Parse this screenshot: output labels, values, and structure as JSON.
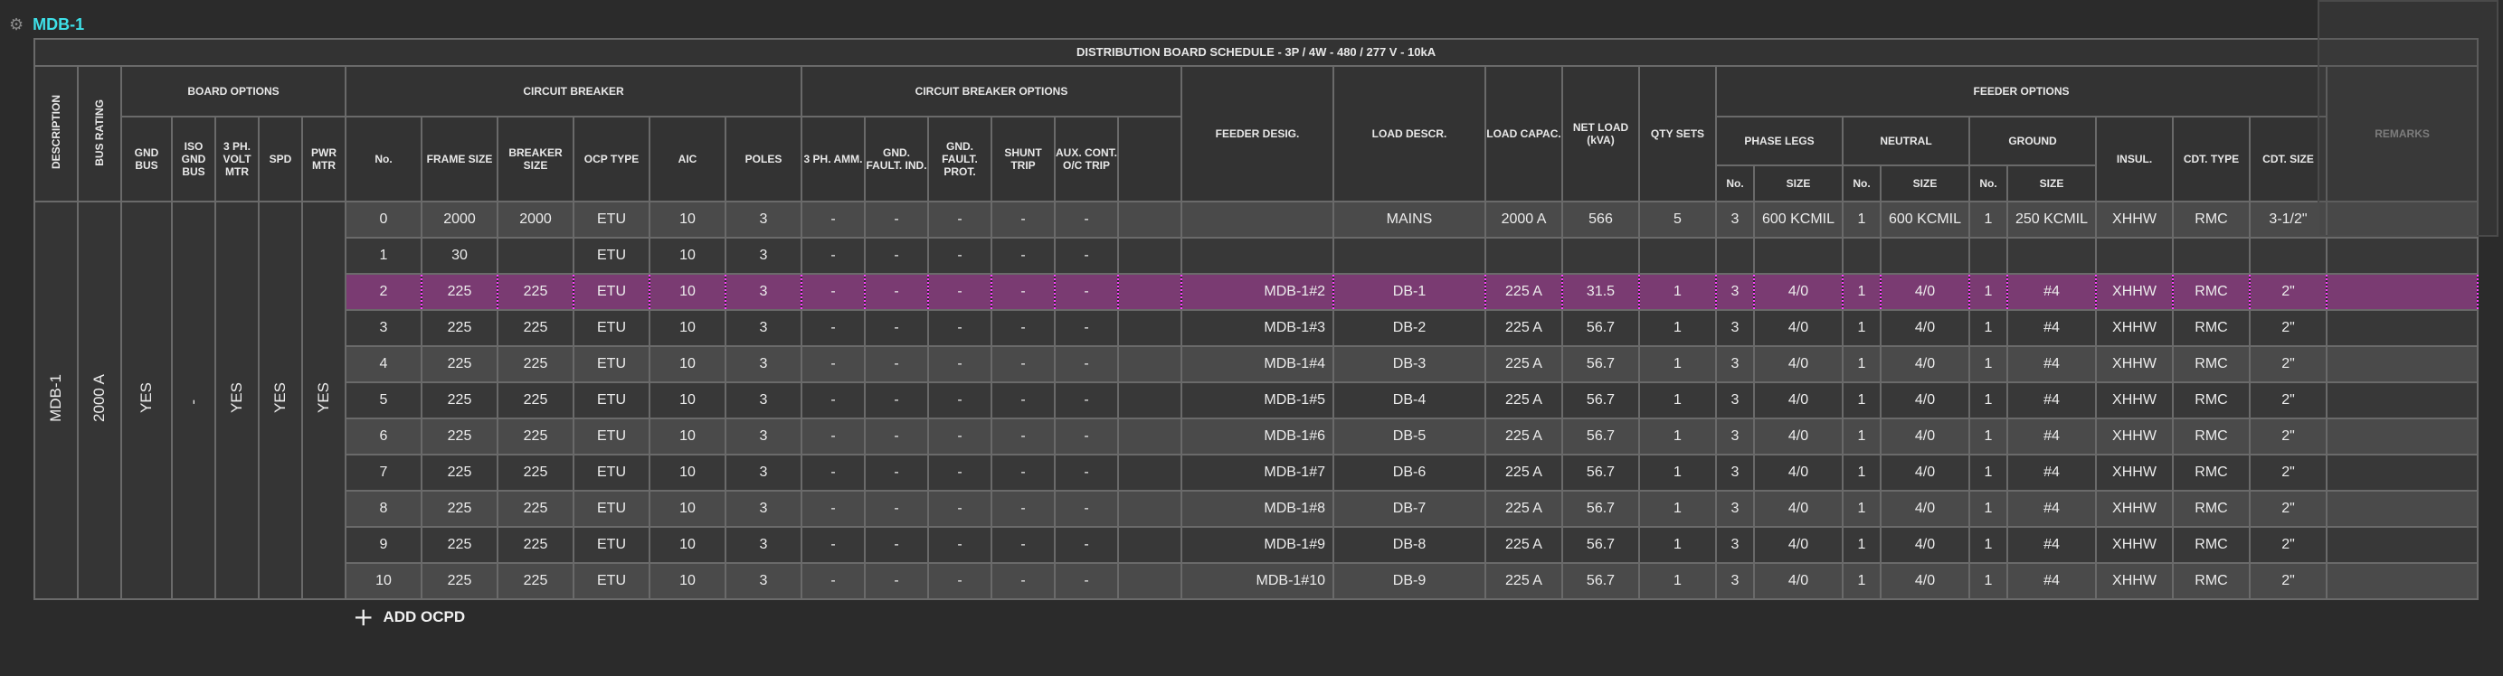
{
  "panel": {
    "title": "MDB-1"
  },
  "schedule_title": "DISTRIBUTION BOARD SCHEDULE - 3P / 4W - 480 / 277 V - 10kA",
  "headers": {
    "description": "DESCRIPTION",
    "bus_rating": "BUS RATING",
    "board_options": "BOARD OPTIONS",
    "gnd_bus": "GND BUS",
    "iso_gnd_bus": "ISO GND BUS",
    "volt_mtr": "3 PH. VOLT MTR",
    "spd": "SPD",
    "pwr_mtr": "PWR MTR",
    "circuit_breaker": "CIRCUIT BREAKER",
    "no": "No.",
    "frame_size": "FRAME SIZE",
    "breaker_size": "BREAKER SIZE",
    "ocp_type": "OCP TYPE",
    "aic": "AIC",
    "poles": "POLES",
    "cb_options": "CIRCUIT BREAKER OPTIONS",
    "amm": "3 PH. AMM.",
    "gnd_fault_ind": "GND. FAULT. IND.",
    "gnd_fault_prot": "GND. FAULT. PROT.",
    "shunt_trip": "SHUNT TRIP",
    "aux_cont": "AUX. CONT. O/C TRIP",
    "feeder_desig": "FEEDER DESIG.",
    "load_descr": "LOAD DESCR.",
    "load_capac": "LOAD CAPAC.",
    "net_load": "NET LOAD (kVA)",
    "qty_sets": "QTY SETS",
    "feeder_options": "FEEDER OPTIONS",
    "phase_legs": "PHASE LEGS",
    "neutral": "NEUTRAL",
    "ground": "GROUND",
    "sub_no": "No.",
    "sub_size": "SIZE",
    "insul": "INSUL.",
    "cdt_type": "CDT. TYPE",
    "cdt_size": "CDT. SIZE",
    "remarks": "REMARKS"
  },
  "board": {
    "description": "MDB-1",
    "bus_rating": "2000 A",
    "gnd_bus": "YES",
    "iso_gnd_bus": "-",
    "volt_mtr": "YES",
    "spd": "YES",
    "pwr_mtr": "YES"
  },
  "rows": [
    {
      "no": "0",
      "frame": "2000",
      "breaker": "2000",
      "ocp": "ETU",
      "aic": "10",
      "poles": "3",
      "amm": "-",
      "gfi": "-",
      "gfp": "-",
      "shunt": "-",
      "aux": "-",
      "desig": "",
      "load": "MAINS",
      "capac": "2000 A",
      "net": "566",
      "qty": "5",
      "ph_no": "3",
      "ph_size": "600 KCMIL",
      "n_no": "1",
      "n_size": "600 KCMIL",
      "g_no": "1",
      "g_size": "250 KCMIL",
      "insul": "XHHW",
      "cdt_type": "RMC",
      "cdt_size": "3-1/2\"",
      "remarks": ""
    },
    {
      "no": "1",
      "frame": "30",
      "breaker": "",
      "ocp": "ETU",
      "aic": "10",
      "poles": "3",
      "amm": "-",
      "gfi": "-",
      "gfp": "-",
      "shunt": "-",
      "aux": "-",
      "desig": "",
      "load": "",
      "capac": "",
      "net": "",
      "qty": "",
      "ph_no": "",
      "ph_size": "",
      "n_no": "",
      "n_size": "",
      "g_no": "",
      "g_size": "",
      "insul": "",
      "cdt_type": "",
      "cdt_size": "",
      "remarks": ""
    },
    {
      "no": "2",
      "frame": "225",
      "breaker": "225",
      "ocp": "ETU",
      "aic": "10",
      "poles": "3",
      "amm": "-",
      "gfi": "-",
      "gfp": "-",
      "shunt": "-",
      "aux": "-",
      "desig": "MDB-1#2",
      "load": "DB-1",
      "capac": "225 A",
      "net": "31.5",
      "qty": "1",
      "ph_no": "3",
      "ph_size": "4/0",
      "n_no": "1",
      "n_size": "4/0",
      "g_no": "1",
      "g_size": "#4",
      "insul": "XHHW",
      "cdt_type": "RMC",
      "cdt_size": "2\"",
      "remarks": ""
    },
    {
      "no": "3",
      "frame": "225",
      "breaker": "225",
      "ocp": "ETU",
      "aic": "10",
      "poles": "3",
      "amm": "-",
      "gfi": "-",
      "gfp": "-",
      "shunt": "-",
      "aux": "-",
      "desig": "MDB-1#3",
      "load": "DB-2",
      "capac": "225 A",
      "net": "56.7",
      "qty": "1",
      "ph_no": "3",
      "ph_size": "4/0",
      "n_no": "1",
      "n_size": "4/0",
      "g_no": "1",
      "g_size": "#4",
      "insul": "XHHW",
      "cdt_type": "RMC",
      "cdt_size": "2\"",
      "remarks": ""
    },
    {
      "no": "4",
      "frame": "225",
      "breaker": "225",
      "ocp": "ETU",
      "aic": "10",
      "poles": "3",
      "amm": "-",
      "gfi": "-",
      "gfp": "-",
      "shunt": "-",
      "aux": "-",
      "desig": "MDB-1#4",
      "load": "DB-3",
      "capac": "225 A",
      "net": "56.7",
      "qty": "1",
      "ph_no": "3",
      "ph_size": "4/0",
      "n_no": "1",
      "n_size": "4/0",
      "g_no": "1",
      "g_size": "#4",
      "insul": "XHHW",
      "cdt_type": "RMC",
      "cdt_size": "2\"",
      "remarks": ""
    },
    {
      "no": "5",
      "frame": "225",
      "breaker": "225",
      "ocp": "ETU",
      "aic": "10",
      "poles": "3",
      "amm": "-",
      "gfi": "-",
      "gfp": "-",
      "shunt": "-",
      "aux": "-",
      "desig": "MDB-1#5",
      "load": "DB-4",
      "capac": "225 A",
      "net": "56.7",
      "qty": "1",
      "ph_no": "3",
      "ph_size": "4/0",
      "n_no": "1",
      "n_size": "4/0",
      "g_no": "1",
      "g_size": "#4",
      "insul": "XHHW",
      "cdt_type": "RMC",
      "cdt_size": "2\"",
      "remarks": ""
    },
    {
      "no": "6",
      "frame": "225",
      "breaker": "225",
      "ocp": "ETU",
      "aic": "10",
      "poles": "3",
      "amm": "-",
      "gfi": "-",
      "gfp": "-",
      "shunt": "-",
      "aux": "-",
      "desig": "MDB-1#6",
      "load": "DB-5",
      "capac": "225 A",
      "net": "56.7",
      "qty": "1",
      "ph_no": "3",
      "ph_size": "4/0",
      "n_no": "1",
      "n_size": "4/0",
      "g_no": "1",
      "g_size": "#4",
      "insul": "XHHW",
      "cdt_type": "RMC",
      "cdt_size": "2\"",
      "remarks": ""
    },
    {
      "no": "7",
      "frame": "225",
      "breaker": "225",
      "ocp": "ETU",
      "aic": "10",
      "poles": "3",
      "amm": "-",
      "gfi": "-",
      "gfp": "-",
      "shunt": "-",
      "aux": "-",
      "desig": "MDB-1#7",
      "load": "DB-6",
      "capac": "225 A",
      "net": "56.7",
      "qty": "1",
      "ph_no": "3",
      "ph_size": "4/0",
      "n_no": "1",
      "n_size": "4/0",
      "g_no": "1",
      "g_size": "#4",
      "insul": "XHHW",
      "cdt_type": "RMC",
      "cdt_size": "2\"",
      "remarks": ""
    },
    {
      "no": "8",
      "frame": "225",
      "breaker": "225",
      "ocp": "ETU",
      "aic": "10",
      "poles": "3",
      "amm": "-",
      "gfi": "-",
      "gfp": "-",
      "shunt": "-",
      "aux": "-",
      "desig": "MDB-1#8",
      "load": "DB-7",
      "capac": "225 A",
      "net": "56.7",
      "qty": "1",
      "ph_no": "3",
      "ph_size": "4/0",
      "n_no": "1",
      "n_size": "4/0",
      "g_no": "1",
      "g_size": "#4",
      "insul": "XHHW",
      "cdt_type": "RMC",
      "cdt_size": "2\"",
      "remarks": ""
    },
    {
      "no": "9",
      "frame": "225",
      "breaker": "225",
      "ocp": "ETU",
      "aic": "10",
      "poles": "3",
      "amm": "-",
      "gfi": "-",
      "gfp": "-",
      "shunt": "-",
      "aux": "-",
      "desig": "MDB-1#9",
      "load": "DB-8",
      "capac": "225 A",
      "net": "56.7",
      "qty": "1",
      "ph_no": "3",
      "ph_size": "4/0",
      "n_no": "1",
      "n_size": "4/0",
      "g_no": "1",
      "g_size": "#4",
      "insul": "XHHW",
      "cdt_type": "RMC",
      "cdt_size": "2\"",
      "remarks": ""
    },
    {
      "no": "10",
      "frame": "225",
      "breaker": "225",
      "ocp": "ETU",
      "aic": "10",
      "poles": "3",
      "amm": "-",
      "gfi": "-",
      "gfp": "-",
      "shunt": "-",
      "aux": "-",
      "desig": "MDB-1#10",
      "load": "DB-9",
      "capac": "225 A",
      "net": "56.7",
      "qty": "1",
      "ph_no": "3",
      "ph_size": "4/0",
      "n_no": "1",
      "n_size": "4/0",
      "g_no": "1",
      "g_size": "#4",
      "insul": "XHHW",
      "cdt_type": "RMC",
      "cdt_size": "2\"",
      "remarks": ""
    }
  ],
  "selected_row": 2,
  "add_button": {
    "label": "ADD OCPD",
    "icon": "plus-icon"
  },
  "colors": {
    "accent": "#3ee0e8",
    "selection": "#ff40ff",
    "selection_fill": "#7a3b72",
    "row_even": "#4a4a4a",
    "row_odd": "#383838"
  }
}
